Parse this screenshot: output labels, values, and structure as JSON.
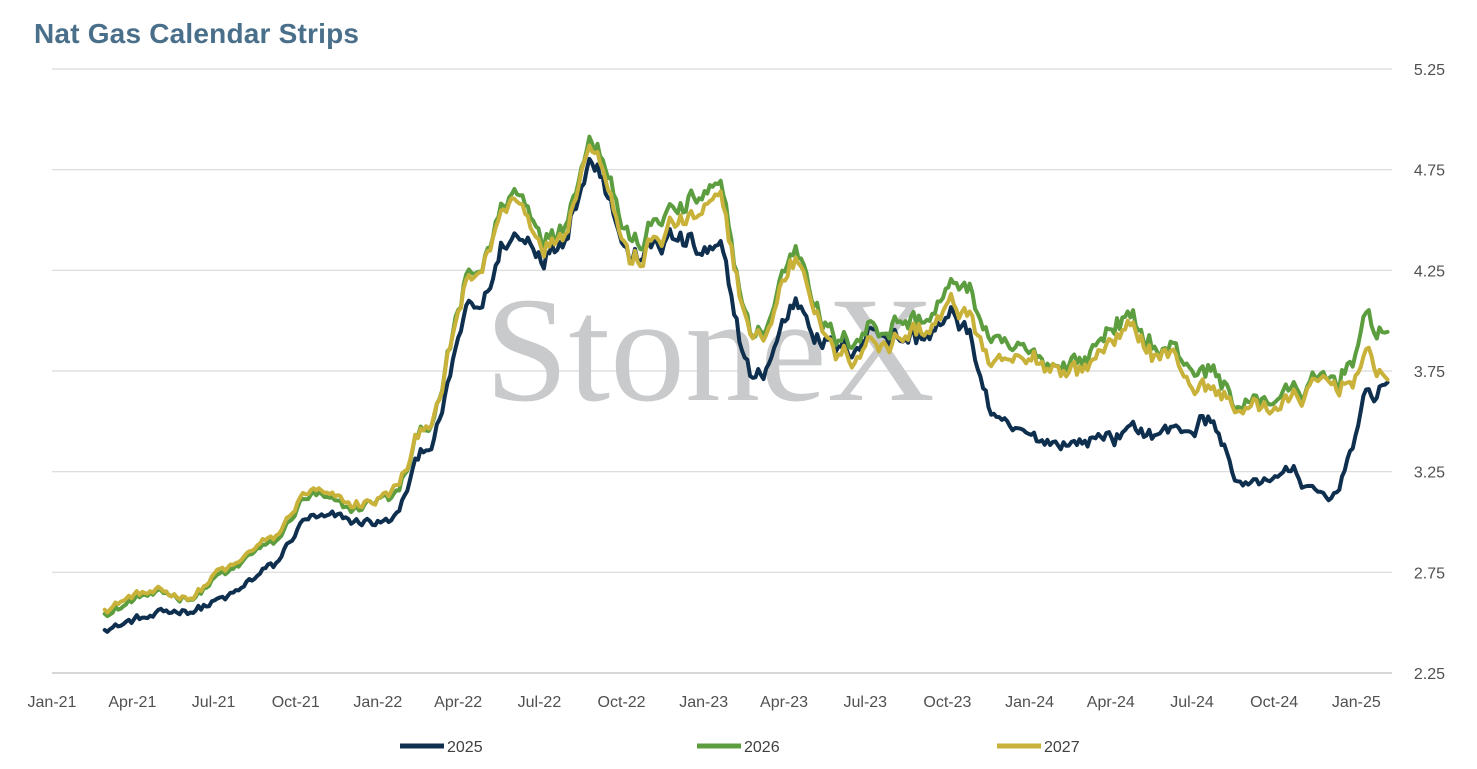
{
  "title": "Nat Gas Calendar Strips",
  "watermark": "StoneX",
  "colors": {
    "s2025": "#0f2f4f",
    "s2026": "#5c9e3f",
    "s2027": "#c8b23a",
    "grid": "#d9d9d9",
    "title": "#4a6f8a"
  },
  "chart_data": {
    "type": "line",
    "title": "Nat Gas Calendar Strips",
    "xlabel": "",
    "ylabel": "",
    "ylim": [
      2.25,
      5.25
    ],
    "yticks": [
      "2.25",
      "2.75",
      "3.25",
      "3.75",
      "4.25",
      "4.75",
      "5.25"
    ],
    "y_axis_side": "right",
    "x_tick_labels": [
      "Jan-21",
      "Apr-21",
      "Jul-21",
      "Oct-21",
      "Jan-22",
      "Apr-22",
      "Jul-22",
      "Oct-22",
      "Jan-23",
      "Apr-23",
      "Jul-23",
      "Oct-23",
      "Jan-24",
      "Apr-24",
      "Jul-24",
      "Oct-24",
      "Jan-25"
    ],
    "grid": true,
    "legend_position": "bottom",
    "x": [
      "2021-03-01",
      "2021-04-15",
      "2021-06-01",
      "2021-07-15",
      "2021-09-01",
      "2021-10-15",
      "2021-12-01",
      "2022-01-15",
      "2022-03-01",
      "2022-04-15",
      "2022-06-01",
      "2022-07-15",
      "2022-09-01",
      "2022-10-15",
      "2022-12-01",
      "2023-01-15",
      "2023-03-01",
      "2023-04-15",
      "2023-06-01",
      "2023-07-15",
      "2023-09-01",
      "2023-10-15",
      "2023-12-01",
      "2024-01-15",
      "2024-03-01",
      "2024-04-15",
      "2024-06-01",
      "2024-07-15",
      "2024-09-01",
      "2024-10-15",
      "2024-12-01",
      "2025-01-15",
      "2025-02-05"
    ],
    "series": [
      {
        "name": "2025",
        "values": [
          2.48,
          2.52,
          2.56,
          2.62,
          2.76,
          3.02,
          3.0,
          3.0,
          3.4,
          4.02,
          4.42,
          4.38,
          4.82,
          4.32,
          4.4,
          4.3,
          3.7,
          4.1,
          3.85,
          3.95,
          3.92,
          4.0,
          3.45,
          3.4,
          3.4,
          3.45,
          3.45,
          3.5,
          3.18,
          3.25,
          3.1,
          3.6,
          3.72
        ]
      },
      {
        "name": "2026",
        "values": [
          2.56,
          2.63,
          2.63,
          2.74,
          2.88,
          3.12,
          3.06,
          3.12,
          3.5,
          4.18,
          4.62,
          4.44,
          4.92,
          4.4,
          4.55,
          4.6,
          3.92,
          4.35,
          3.88,
          4.0,
          4.02,
          4.18,
          3.85,
          3.8,
          3.82,
          4.0,
          3.85,
          3.75,
          3.58,
          3.65,
          3.68,
          3.95,
          3.95
        ]
      },
      {
        "name": "2027",
        "values": [
          2.58,
          2.65,
          2.63,
          2.76,
          2.9,
          3.14,
          3.08,
          3.14,
          3.5,
          4.16,
          4.6,
          4.4,
          4.9,
          4.3,
          4.48,
          4.55,
          3.88,
          4.3,
          3.82,
          3.92,
          3.96,
          4.06,
          3.75,
          3.78,
          3.76,
          3.95,
          3.82,
          3.68,
          3.55,
          3.6,
          3.66,
          3.8,
          3.75
        ]
      }
    ]
  },
  "legend": [
    {
      "label": "2025"
    },
    {
      "label": "2026"
    },
    {
      "label": "2027"
    }
  ]
}
